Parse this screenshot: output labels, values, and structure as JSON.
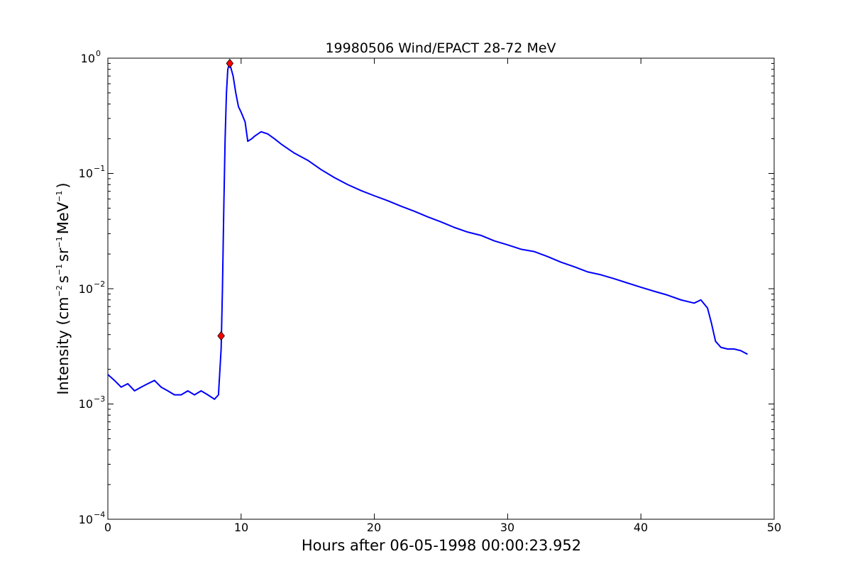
{
  "chart_data": {
    "type": "line",
    "title": "19980506 Wind/EPACT 28-72 MeV",
    "xlabel": "Hours after 06-05-1998 00:00:23.952",
    "ylabel_parts": {
      "prefix": "Intensity (cm",
      "exp1": "−2",
      "s": "s",
      "exp2": "−1",
      "sr": "sr",
      "exp3": "−1",
      "mev": "MeV",
      "exp4": "−1",
      "suffix": ")"
    },
    "xlim": [
      0,
      50
    ],
    "ylim": [
      0.0001,
      1
    ],
    "yscale": "log",
    "x_ticks": [
      "0",
      "10",
      "20",
      "30",
      "40",
      "50"
    ],
    "y_ticks": [
      {
        "base": "10",
        "exp": "−4"
      },
      {
        "base": "10",
        "exp": "−3"
      },
      {
        "base": "10",
        "exp": "−2"
      },
      {
        "base": "10",
        "exp": "−1"
      },
      {
        "base": "10",
        "exp": "0"
      }
    ],
    "series": [
      {
        "role": "raw",
        "color": "#000000",
        "x": [
          0.0,
          0.5,
          1.0,
          1.5,
          2.0,
          2.5,
          3.0,
          3.5,
          4.0,
          4.5,
          5.0,
          5.5,
          6.0,
          6.5,
          7.0,
          7.5,
          8.0,
          8.3,
          8.5,
          8.6,
          8.7,
          8.8,
          8.9,
          9.0,
          9.1,
          9.2,
          9.4,
          9.6,
          9.8,
          10.0,
          10.3,
          10.5,
          10.8,
          11.0,
          11.5,
          12.0,
          12.5,
          13.0,
          14.0,
          15.0,
          16.0,
          17.0,
          18.0,
          19.0,
          20.0,
          21.0,
          22.0,
          23.0,
          24.0,
          25.0,
          26.0,
          27.0,
          28.0,
          29.0,
          30.0,
          31.0,
          32.0,
          33.0,
          34.0,
          35.0,
          36.0,
          37.0,
          38.0,
          39.0,
          40.0,
          41.0,
          42.0,
          43.0,
          44.0,
          44.5,
          45.0,
          45.3,
          45.6,
          46.0,
          46.5,
          47.0,
          47.5,
          48.0
        ],
        "y": [
          0.0018,
          0.0016,
          0.0014,
          0.0015,
          0.0013,
          0.0014,
          0.0015,
          0.0016,
          0.0014,
          0.0013,
          0.0012,
          0.0012,
          0.0013,
          0.0012,
          0.0013,
          0.0012,
          0.0011,
          0.0012,
          0.003,
          0.01,
          0.05,
          0.2,
          0.5,
          0.8,
          0.88,
          0.85,
          0.7,
          0.5,
          0.38,
          0.34,
          0.28,
          0.19,
          0.2,
          0.21,
          0.23,
          0.22,
          0.2,
          0.18,
          0.15,
          0.13,
          0.108,
          0.092,
          0.08,
          0.071,
          0.064,
          0.058,
          0.052,
          0.047,
          0.042,
          0.038,
          0.034,
          0.031,
          0.029,
          0.026,
          0.024,
          0.022,
          0.021,
          0.019,
          0.017,
          0.0155,
          0.014,
          0.0132,
          0.0122,
          0.0112,
          0.0103,
          0.0095,
          0.0088,
          0.008,
          0.0075,
          0.008,
          0.0068,
          0.005,
          0.0035,
          0.0031,
          0.003,
          0.003,
          0.0029,
          0.0027
        ]
      },
      {
        "role": "smoothed",
        "color": "#0000ff",
        "x": [
          0.0,
          0.5,
          1.0,
          1.5,
          2.0,
          2.5,
          3.0,
          3.5,
          4.0,
          4.5,
          5.0,
          5.5,
          6.0,
          6.5,
          7.0,
          7.5,
          8.0,
          8.3,
          8.5,
          8.6,
          8.7,
          8.8,
          8.9,
          9.0,
          9.1,
          9.2,
          9.4,
          9.6,
          9.8,
          10.0,
          10.3,
          10.5,
          10.8,
          11.0,
          11.5,
          12.0,
          12.5,
          13.0,
          14.0,
          15.0,
          16.0,
          17.0,
          18.0,
          19.0,
          20.0,
          21.0,
          22.0,
          23.0,
          24.0,
          25.0,
          26.0,
          27.0,
          28.0,
          29.0,
          30.0,
          31.0,
          32.0,
          33.0,
          34.0,
          35.0,
          36.0,
          37.0,
          38.0,
          39.0,
          40.0,
          41.0,
          42.0,
          43.0,
          44.0,
          44.5,
          45.0,
          45.3,
          45.6,
          46.0,
          46.5,
          47.0,
          47.5,
          48.0
        ],
        "y": [
          0.0018,
          0.0016,
          0.0014,
          0.0015,
          0.0013,
          0.0014,
          0.0015,
          0.0016,
          0.0014,
          0.0013,
          0.0012,
          0.0012,
          0.0013,
          0.0012,
          0.0013,
          0.0012,
          0.0011,
          0.0012,
          0.003,
          0.01,
          0.05,
          0.2,
          0.5,
          0.8,
          0.88,
          0.85,
          0.7,
          0.5,
          0.38,
          0.34,
          0.28,
          0.19,
          0.2,
          0.21,
          0.23,
          0.22,
          0.2,
          0.18,
          0.15,
          0.13,
          0.108,
          0.092,
          0.08,
          0.071,
          0.064,
          0.058,
          0.052,
          0.047,
          0.042,
          0.038,
          0.034,
          0.031,
          0.029,
          0.026,
          0.024,
          0.022,
          0.021,
          0.019,
          0.017,
          0.0155,
          0.014,
          0.0132,
          0.0122,
          0.0112,
          0.0103,
          0.0095,
          0.0088,
          0.008,
          0.0075,
          0.008,
          0.0068,
          0.005,
          0.0035,
          0.0031,
          0.003,
          0.003,
          0.0029,
          0.0027
        ]
      }
    ],
    "markers": [
      {
        "x": 8.5,
        "y": 0.0039,
        "color": "#ff0000"
      },
      {
        "x": 9.15,
        "y": 0.9,
        "color": "#ff0000"
      }
    ]
  }
}
